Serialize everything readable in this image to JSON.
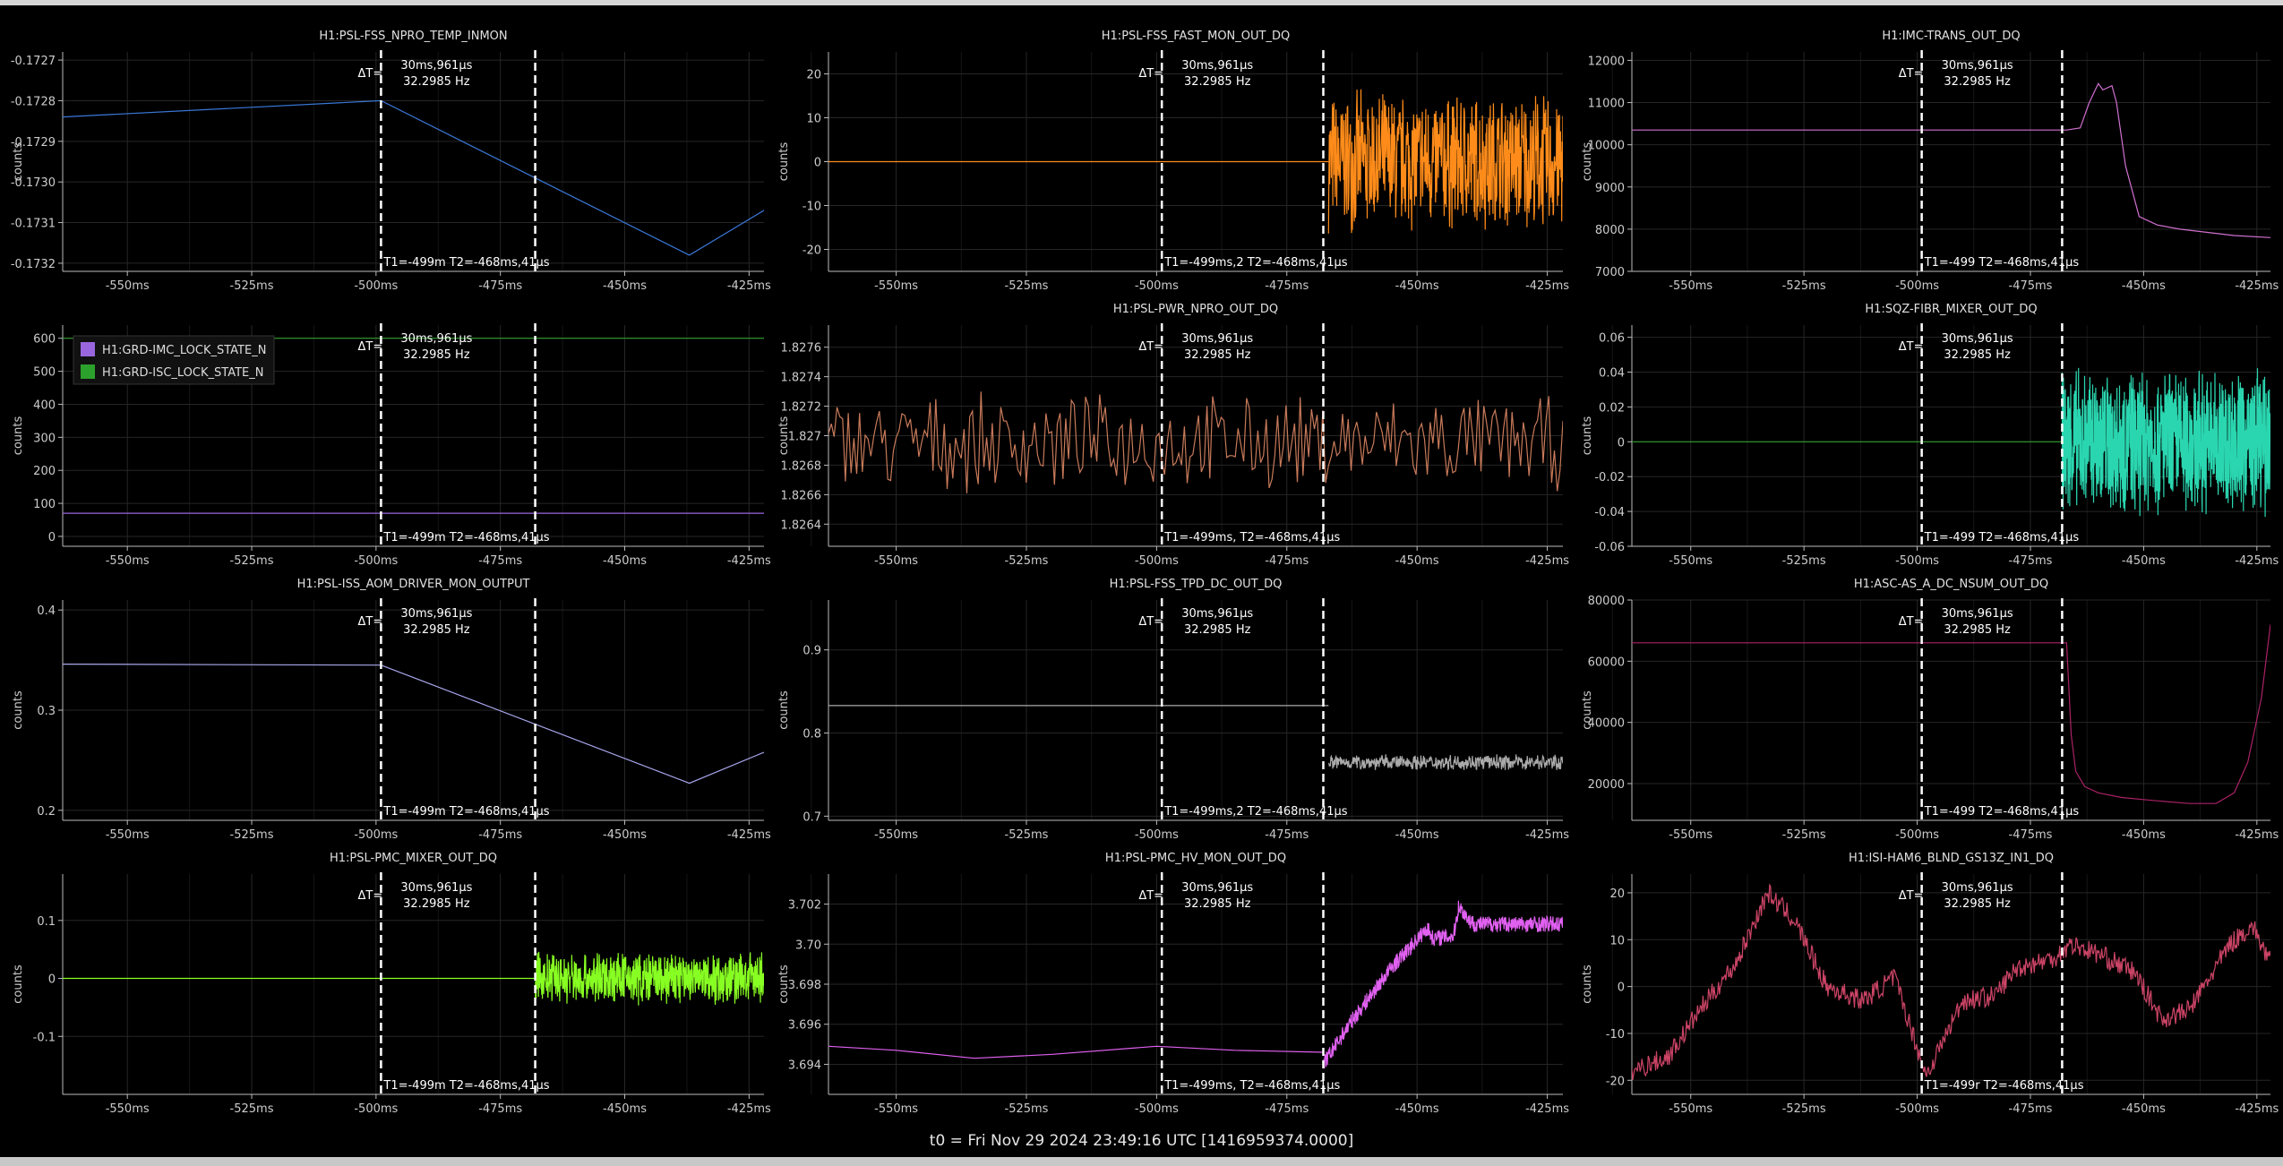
{
  "footer": {
    "t0_text": "t0 = Fri Nov 29 2024 23:49:16 UTC [1416959374.0000]"
  },
  "common": {
    "ylabel": "counts",
    "dt_label": "ΔT=",
    "dt_value": "30ms,961μs",
    "freq": "32.2985 Hz",
    "x_ticks": [
      -550,
      -525,
      -500,
      -475,
      -450,
      -425
    ],
    "x_tick_labels": [
      "-550ms",
      "-525ms",
      "-500ms",
      "-475ms",
      "-450ms",
      "-425ms"
    ],
    "xlim": [
      -563,
      -422
    ],
    "cursor_t1_ms": -499,
    "cursor_t2_ms": -468
  },
  "chart_data": [
    {
      "type": "line",
      "title": "H1:PSL-FSS_NPRO_TEMP_INMON",
      "col": 0,
      "row": 0,
      "color": "#3a78d8",
      "ylim": [
        -0.17322,
        -0.17268
      ],
      "y_ticks": [
        -0.1727,
        -0.1728,
        -0.1729,
        -0.173,
        -0.1731,
        -0.1732
      ],
      "y_tick_labels": [
        "-0.1727",
        "-0.1728",
        "-0.1729",
        "-0.1730",
        "-0.1731",
        "-0.1732"
      ],
      "cursor_text": "T1=-499m T2=-468ms,41μs",
      "segments": [
        {
          "kind": "poly",
          "x": [
            -563,
            -499,
            -437,
            -422
          ],
          "y": [
            -0.17284,
            -0.1728,
            -0.17318,
            -0.17307
          ]
        }
      ]
    },
    {
      "type": "line",
      "title": "H1:PSL-FSS_FAST_MON_OUT_DQ",
      "col": 1,
      "row": 0,
      "color": "#ff8c1a",
      "ylim": [
        -25,
        25
      ],
      "y_ticks": [
        20,
        10,
        0,
        -10,
        -20
      ],
      "y_tick_labels": [
        "20",
        "10",
        "0",
        "-10",
        "-20"
      ],
      "cursor_text": "T1=-499ms,2 T2=-468ms,41μs",
      "segments": [
        {
          "kind": "poly",
          "x": [
            -563,
            -467
          ],
          "y": [
            0,
            0
          ]
        },
        {
          "kind": "noise",
          "x0": -467,
          "x1": -422,
          "center": 0,
          "amp": 17,
          "n": 600
        }
      ]
    },
    {
      "type": "line",
      "title": "H1:IMC-TRANS_OUT_DQ",
      "col": 2,
      "row": 0,
      "color": "#d070d0",
      "ylim": [
        7000,
        12200
      ],
      "y_ticks": [
        12000,
        11000,
        10000,
        9000,
        8000,
        7000
      ],
      "y_tick_labels": [
        "12000",
        "11000",
        "10000",
        "9000",
        "8000",
        "7000"
      ],
      "cursor_text": "T1=-499 T2=-468ms,41μs",
      "segments": [
        {
          "kind": "poly",
          "x": [
            -563,
            -467,
            -464,
            -462,
            -460,
            -459,
            -457,
            -456,
            -454,
            -451,
            -447,
            -442,
            -430,
            -422
          ],
          "y": [
            10350,
            10350,
            10400,
            11000,
            11450,
            11300,
            11400,
            11000,
            9500,
            8300,
            8100,
            8000,
            7850,
            7800
          ]
        }
      ]
    },
    {
      "type": "line",
      "title": "",
      "col": 0,
      "row": 1,
      "color": "#9966dd",
      "ylim": [
        -30,
        640
      ],
      "y_ticks": [
        600,
        500,
        400,
        300,
        200,
        100,
        0
      ],
      "y_tick_labels": [
        "600",
        "500",
        "400",
        "300",
        "200",
        "100",
        "0"
      ],
      "cursor_text": "T1=-499m T2=-468ms,41μs",
      "legend": [
        {
          "name": "H1:GRD-IMC_LOCK_STATE_N",
          "color": "#9966dd"
        },
        {
          "name": "H1:GRD-ISC_LOCK_STATE_N",
          "color": "#2ca02c"
        }
      ],
      "segments": [
        {
          "kind": "poly",
          "x": [
            -563,
            -422
          ],
          "y": [
            70,
            70
          ],
          "color": "#9966dd"
        },
        {
          "kind": "poly",
          "x": [
            -563,
            -422
          ],
          "y": [
            600,
            600
          ],
          "color": "#2ca02c"
        }
      ]
    },
    {
      "type": "line",
      "title": "H1:PSL-PWR_NPRO_OUT_DQ",
      "col": 1,
      "row": 1,
      "color": "#c87a5a",
      "ylim": [
        1.82625,
        1.82775
      ],
      "y_ticks": [
        1.8276,
        1.8274,
        1.8272,
        1.827,
        1.8268,
        1.8266,
        1.8264
      ],
      "y_tick_labels": [
        "1.8276",
        "1.8274",
        "1.8272",
        "1.827",
        "1.8268",
        "1.8266",
        "1.8264"
      ],
      "cursor_text": "T1=-499ms, T2=-468ms,41μs",
      "segments": [
        {
          "kind": "noise",
          "x0": -563,
          "x1": -422,
          "center": 1.82695,
          "amp": 0.00035,
          "n": 260
        }
      ]
    },
    {
      "type": "line",
      "title": "H1:SQZ-FIBR_MIXER_OUT_DQ",
      "col": 2,
      "row": 1,
      "color": "#2ad6b0",
      "ylim": [
        -0.06,
        0.067
      ],
      "y_ticks": [
        0.06,
        0.04,
        0.02,
        0,
        -0.02,
        -0.04,
        -0.06
      ],
      "y_tick_labels": [
        "0.06",
        "0.04",
        "0.02",
        "0",
        "-0.02",
        "-0.04",
        "-0.06"
      ],
      "cursor_text": "T1=-499 T2=-468ms,41μs",
      "segments": [
        {
          "kind": "poly",
          "x": [
            -563,
            -468
          ],
          "y": [
            0,
            0
          ],
          "color": "#2ca02c"
        },
        {
          "kind": "noise",
          "x0": -468,
          "x1": -422,
          "center": 0,
          "amp": 0.045,
          "n": 900
        }
      ]
    },
    {
      "type": "line",
      "title": "H1:PSL-ISS_AOM_DRIVER_MON_OUTPUT",
      "col": 0,
      "row": 2,
      "color": "#a8a8ee",
      "ylim": [
        0.19,
        0.41
      ],
      "y_ticks": [
        0.4,
        0.3,
        0.2
      ],
      "y_tick_labels": [
        "0.4",
        "0.3",
        "0.2"
      ],
      "cursor_text": "T1=-499m T2=-468ms,41μs",
      "segments": [
        {
          "kind": "poly",
          "x": [
            -563,
            -499,
            -437,
            -422
          ],
          "y": [
            0.346,
            0.345,
            0.227,
            0.258
          ]
        }
      ]
    },
    {
      "type": "line",
      "title": "H1:PSL-FSS_TPD_DC_OUT_DQ",
      "col": 1,
      "row": 2,
      "color": "#aaaaaa",
      "ylim": [
        0.695,
        0.96
      ],
      "y_ticks": [
        0.9,
        0.8,
        0.7
      ],
      "y_tick_labels": [
        "0.9",
        "0.8",
        "0.7"
      ],
      "cursor_text": "T1=-499ms,2 T2=-468ms,41μs",
      "segments": [
        {
          "kind": "poly",
          "x": [
            -563,
            -467
          ],
          "y": [
            0.833,
            0.833
          ]
        },
        {
          "kind": "noise",
          "x0": -467,
          "x1": -422,
          "center": 0.765,
          "amp": 0.01,
          "n": 500
        }
      ]
    },
    {
      "type": "line",
      "title": "H1:ASC-AS_A_DC_NSUM_OUT_DQ",
      "col": 2,
      "row": 2,
      "color": "#aa2266",
      "ylim": [
        8000,
        80000
      ],
      "y_ticks": [
        80000,
        60000,
        40000,
        20000
      ],
      "y_tick_labels": [
        "80000",
        "60000",
        "40000",
        "20000"
      ],
      "cursor_text": "T1=-499 T2=-468ms,41μs",
      "segments": [
        {
          "kind": "poly",
          "x": [
            -563,
            -467,
            -466,
            -465,
            -463,
            -460,
            -455,
            -448,
            -440,
            -434,
            -430,
            -427,
            -424,
            -422
          ],
          "y": [
            66000,
            66000,
            36000,
            24000,
            19000,
            17000,
            15500,
            14500,
            13500,
            13500,
            17000,
            27000,
            48000,
            72000
          ]
        }
      ]
    },
    {
      "type": "line",
      "title": "H1:PSL-PMC_MIXER_OUT_DQ",
      "col": 0,
      "row": 3,
      "color": "#88ff22",
      "ylim": [
        -0.2,
        0.18
      ],
      "y_ticks": [
        0.1,
        0,
        -0.1
      ],
      "y_tick_labels": [
        "0.1",
        "0",
        "-0.1"
      ],
      "cursor_text": "T1=-499m T2=-468ms,41μs",
      "segments": [
        {
          "kind": "poly",
          "x": [
            -563,
            -468
          ],
          "y": [
            0,
            0
          ]
        },
        {
          "kind": "noise",
          "x0": -468,
          "x1": -422,
          "center": 0,
          "amp": 0.05,
          "n": 700
        }
      ]
    },
    {
      "type": "line",
      "title": "H1:PSL-PMC_HV_MON_OUT_DQ",
      "col": 1,
      "row": 3,
      "color": "#e060f0",
      "ylim": [
        3.6925,
        3.7035
      ],
      "y_ticks": [
        3.702,
        3.7,
        3.698,
        3.696,
        3.694
      ],
      "y_tick_labels": [
        "3.702",
        "3.70",
        "3.698",
        "3.696",
        "3.694"
      ],
      "cursor_text": "T1=-499ms, T2=-468ms,41μs",
      "segments": [
        {
          "kind": "poly",
          "x": [
            -563,
            -550,
            -535,
            -520,
            -500,
            -485,
            -468
          ],
          "y": [
            3.6949,
            3.6947,
            3.6943,
            3.6945,
            3.6949,
            3.6947,
            3.6946
          ]
        },
        {
          "kind": "ramp",
          "x": [
            -468,
            -463,
            -455,
            -448,
            -447,
            -443,
            -442,
            -440,
            -439,
            -436,
            -422
          ],
          "y": [
            3.694,
            3.696,
            3.6988,
            3.7008,
            3.7003,
            3.7004,
            3.7019,
            3.7012,
            3.701,
            3.701,
            3.701
          ],
          "amp": 0.0004,
          "n": 700
        }
      ]
    },
    {
      "type": "line",
      "title": "H1:ISI-HAM6_BLND_GS13Z_IN1_DQ",
      "col": 2,
      "row": 3,
      "color": "#cc4466",
      "ylim": [
        -23,
        24
      ],
      "y_ticks": [
        20,
        10,
        0,
        -10,
        -20
      ],
      "y_tick_labels": [
        "20",
        "10",
        "0",
        "-10",
        "-20"
      ],
      "cursor_text": "T1=-499r T2=-468ms,41μs",
      "segments": [
        {
          "kind": "walk",
          "x": [
            -563,
            -555,
            -548,
            -540,
            -533,
            -527,
            -520,
            -512,
            -505,
            -501,
            -498,
            -495,
            -490,
            -483,
            -478,
            -470,
            -466,
            -460,
            -452,
            -446,
            -440,
            -436,
            -431,
            -426,
            -422
          ],
          "y": [
            -18,
            -15,
            -5,
            5,
            20,
            14,
            0,
            -3,
            2,
            -10,
            -19,
            -13,
            -3,
            -2,
            4,
            6,
            9,
            7,
            3,
            -7,
            -5,
            1,
            9,
            13,
            5
          ],
          "amp": 2.2,
          "n": 700
        }
      ]
    }
  ]
}
